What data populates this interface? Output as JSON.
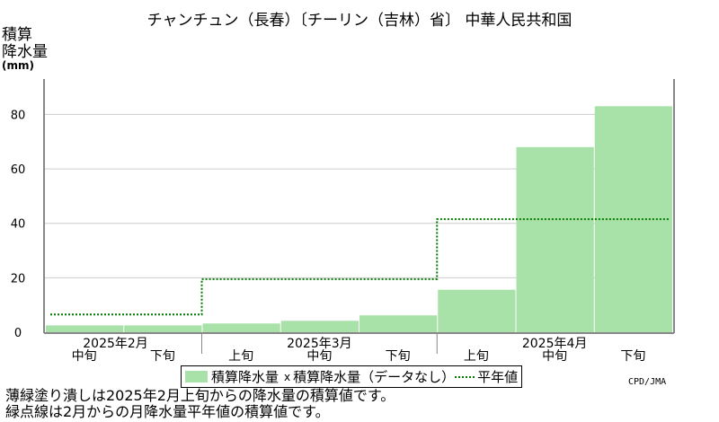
{
  "title": "チャンチュン（長春）〔チーリン（吉林）省〕 中華人民共和国",
  "ylabel_lines": [
    "積算",
    "降水量"
  ],
  "yunit": "(mm)",
  "credit": "CPD/JMA",
  "legend": {
    "bar_label": "積算降水量",
    "missing_mark": "x",
    "missing_label": "積算降水量（データなし）",
    "line_label": "平年値"
  },
  "notes": [
    "薄緑塗り潰しは2025年2月上旬からの降水量の積算値です。",
    "緑点線は2月からの月降水量平年値の積算値です。"
  ],
  "colors": {
    "bar": "#a8e2a8",
    "normal_line": "#007a00",
    "grid": "#cccccc",
    "axis": "#888888"
  },
  "chart_data": {
    "type": "bar",
    "categories": [
      "中旬",
      "下旬",
      "上旬",
      "中旬",
      "下旬",
      "上旬",
      "中旬",
      "下旬"
    ],
    "months": [
      {
        "label": "2025年2月",
        "dekads": [
          "中旬",
          "下旬"
        ]
      },
      {
        "label": "2025年3月",
        "dekads": [
          "上旬",
          "中旬",
          "下旬"
        ]
      },
      {
        "label": "2025年4月",
        "dekads": [
          "上旬",
          "中旬",
          "下旬"
        ]
      }
    ],
    "series": [
      {
        "name": "積算降水量",
        "values": [
          2.5,
          2.5,
          3.2,
          4.2,
          6.2,
          15.6,
          68.0,
          83.0
        ]
      },
      {
        "name": "平年値",
        "values": [
          6.5,
          6.5,
          19.5,
          19.5,
          19.5,
          41.5,
          41.5,
          41.5
        ]
      }
    ],
    "ylim": [
      0,
      93
    ],
    "yticks": [
      0,
      20,
      40,
      60,
      80
    ],
    "grid": true
  }
}
